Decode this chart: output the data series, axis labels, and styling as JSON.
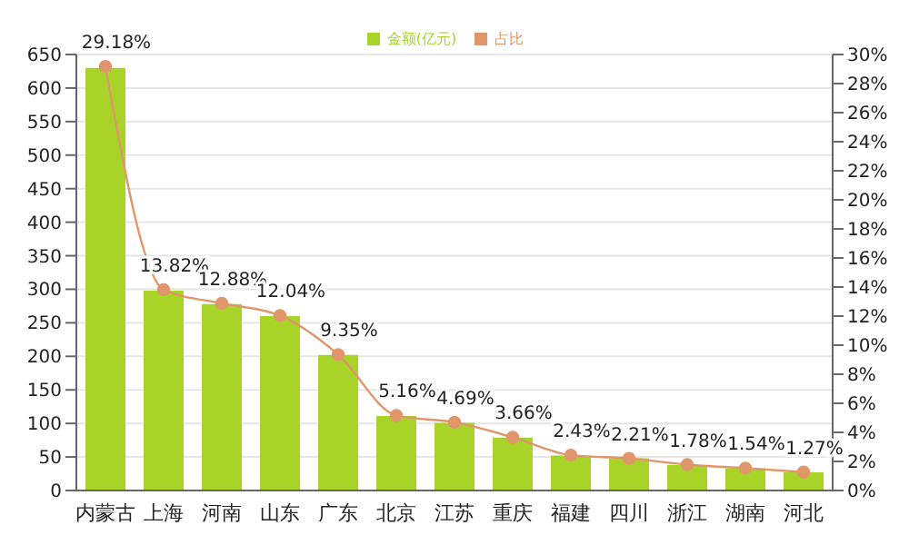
{
  "chart_data": {
    "type": "bar",
    "categories": [
      "内蒙古",
      "上海",
      "河南",
      "山东",
      "广东",
      "北京",
      "江苏",
      "重庆",
      "福建",
      "四川",
      "浙江",
      "湖南",
      "河北"
    ],
    "series": [
      {
        "name": "金额(亿元)",
        "type": "bar",
        "color": "#a8d42a",
        "values": [
          630,
          298,
          278,
          260,
          202,
          111,
          101,
          79,
          52,
          48,
          38,
          33,
          27
        ]
      },
      {
        "name": "占比",
        "type": "line",
        "axis": "y2",
        "color": "#e0966a",
        "marker": "circle",
        "values": [
          29.18,
          13.82,
          12.88,
          12.04,
          9.35,
          5.16,
          4.69,
          3.66,
          2.43,
          2.21,
          1.78,
          1.54,
          1.27
        ],
        "value_labels": [
          "29.18%",
          "13.82%",
          "12.88%",
          "12.04%",
          "9.35%",
          "5.16%",
          "4.69%",
          "3.66%",
          "2.43%",
          "2.21%",
          "1.78%",
          "1.54%",
          "1.27%"
        ]
      }
    ],
    "ylim": [
      0,
      650
    ],
    "yticks": [
      0,
      50,
      100,
      150,
      200,
      250,
      300,
      350,
      400,
      450,
      500,
      550,
      600,
      650
    ],
    "y2lim": [
      0,
      30
    ],
    "y2ticks": [
      {
        "value": 0,
        "label": "0%"
      },
      {
        "value": 2,
        "label": "2%"
      },
      {
        "value": 4,
        "label": "4%"
      },
      {
        "value": 6,
        "label": "6%"
      },
      {
        "value": 8,
        "label": "8%"
      },
      {
        "value": 10,
        "label": "10%"
      },
      {
        "value": 12,
        "label": "12%"
      },
      {
        "value": 14,
        "label": "14%"
      },
      {
        "value": 16,
        "label": "16%"
      },
      {
        "value": 18,
        "label": "18%"
      },
      {
        "value": 20,
        "label": "20%"
      },
      {
        "value": 22,
        "label": "22%"
      },
      {
        "value": 24,
        "label": "24%"
      },
      {
        "value": 26,
        "label": "26%"
      },
      {
        "value": 28,
        "label": "28%"
      },
      {
        "value": 30,
        "label": "30%"
      }
    ],
    "grid": "y",
    "legend": "top"
  }
}
